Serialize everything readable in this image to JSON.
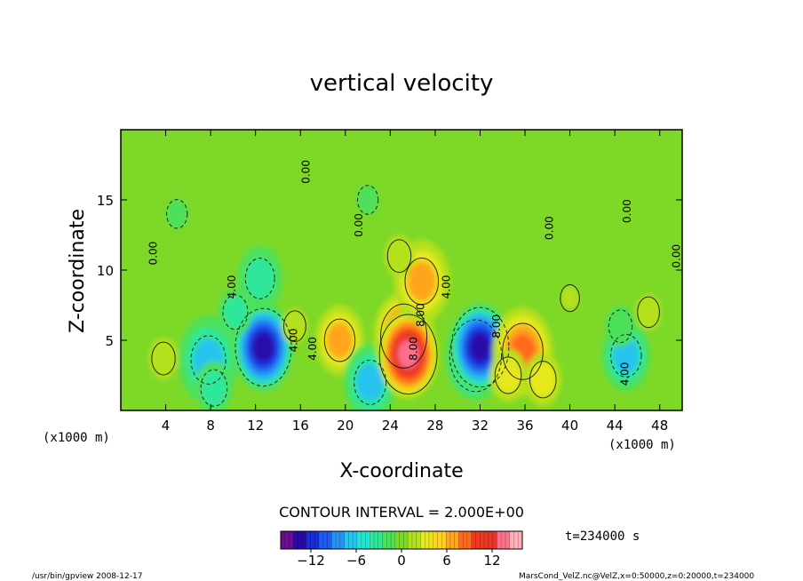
{
  "chart_data": {
    "type": "heatmap",
    "title": "vertical velocity",
    "xlabel": "X-coordinate",
    "ylabel": "Z-coordinate",
    "x_unit_left": "(x1000 m)",
    "x_unit_right": "(x1000 m)",
    "xlim": [
      0,
      50
    ],
    "ylim": [
      0,
      20
    ],
    "x_ticks": [
      4,
      8,
      12,
      16,
      20,
      24,
      28,
      32,
      36,
      40,
      44,
      48
    ],
    "y_ticks": [
      5,
      10,
      15
    ],
    "contour_interval_text": "CONTOUR INTERVAL = 2.000E+00",
    "contour_labels": [
      {
        "text": "0.00",
        "x": 3.2,
        "z": 11.2
      },
      {
        "text": "0.00",
        "x": 21.5,
        "z": 13.2
      },
      {
        "text": "0.00",
        "x": 38.5,
        "z": 13.0
      },
      {
        "text": "0.00",
        "x": 45.4,
        "z": 14.2
      },
      {
        "text": "0.00",
        "x": 49.8,
        "z": 11.0
      },
      {
        "text": "0.00",
        "x": 16.8,
        "z": 17.0
      },
      {
        "text": "4.00",
        "x": 10.2,
        "z": 8.8
      },
      {
        "text": "4.00",
        "x": 15.7,
        "z": 5.0
      },
      {
        "text": "4.00",
        "x": 17.4,
        "z": 4.4
      },
      {
        "text": "4.00",
        "x": 29.3,
        "z": 8.8
      },
      {
        "text": "4.00",
        "x": 45.2,
        "z": 2.6
      },
      {
        "text": "8.00",
        "x": 26.4,
        "z": 4.4
      },
      {
        "text": "8.00",
        "x": 27.0,
        "z": 6.8
      },
      {
        "text": "8.00",
        "x": 33.8,
        "z": 6.0
      }
    ],
    "features": [
      {
        "x": 3.8,
        "z": 3.7,
        "w": 2.0
      },
      {
        "x": 7.8,
        "z": 3.6,
        "w": -6.0
      },
      {
        "x": 8.3,
        "z": 1.6,
        "w": -3.0
      },
      {
        "x": 12.7,
        "z": 4.5,
        "w": -13.5
      },
      {
        "x": 12.4,
        "z": 9.4,
        "w": -4.0
      },
      {
        "x": 10.2,
        "z": 7.0,
        "w": -2.5
      },
      {
        "x": 15.5,
        "z": 6.0,
        "w": 1.5
      },
      {
        "x": 19.5,
        "z": 5.0,
        "w": 4.5
      },
      {
        "x": 22.2,
        "z": 2.0,
        "w": -5.0
      },
      {
        "x": 25.2,
        "z": 5.3,
        "w": 10.0
      },
      {
        "x": 25.6,
        "z": 4.0,
        "w": 14.0
      },
      {
        "x": 26.8,
        "z": 9.2,
        "w": 5.5
      },
      {
        "x": 24.8,
        "z": 11.0,
        "w": 2.0
      },
      {
        "x": 31.6,
        "z": 3.9,
        "w": -12.0
      },
      {
        "x": 32.0,
        "z": 4.5,
        "w": -14.0
      },
      {
        "x": 35.8,
        "z": 4.2,
        "w": 8.0
      },
      {
        "x": 37.6,
        "z": 2.2,
        "w": 3.0
      },
      {
        "x": 34.5,
        "z": 2.5,
        "w": 3.0
      },
      {
        "x": 45.0,
        "z": 3.9,
        "w": -4.5
      },
      {
        "x": 44.5,
        "z": 6.0,
        "w": -2.0
      },
      {
        "x": 47.0,
        "z": 7.0,
        "w": 1.5
      },
      {
        "x": 22.0,
        "z": 15.0,
        "w": -1.0
      },
      {
        "x": 5.0,
        "z": 14.0,
        "w": -1.0
      },
      {
        "x": 40.0,
        "z": 8.0,
        "w": 0.5
      }
    ],
    "colorbar": {
      "min": -16,
      "max": 16,
      "tick_values": [
        -12,
        -6,
        0,
        6,
        12
      ],
      "tick_labels": [
        "−12",
        "−6",
        "0",
        "6",
        "12"
      ],
      "colors": [
        "#6a0d91",
        "#2a0aa8",
        "#1a2cd6",
        "#1f5cf0",
        "#2792f2",
        "#25c3ef",
        "#22e6d4",
        "#2fe79a",
        "#4ee05a",
        "#7ed827",
        "#b5e01f",
        "#e6e81d",
        "#ffd21e",
        "#ffa51f",
        "#ff6b1f",
        "#f03a1f",
        "#e6352a",
        "#ff6f8c",
        "#ffb0b8"
      ]
    }
  },
  "time_label": "t=234000 s",
  "footer_left": "/usr/bin/gpview   2008-12-17",
  "footer_right": "MarsCond_VelZ.nc@VelZ,x=0:50000,z=0:20000,t=234000"
}
